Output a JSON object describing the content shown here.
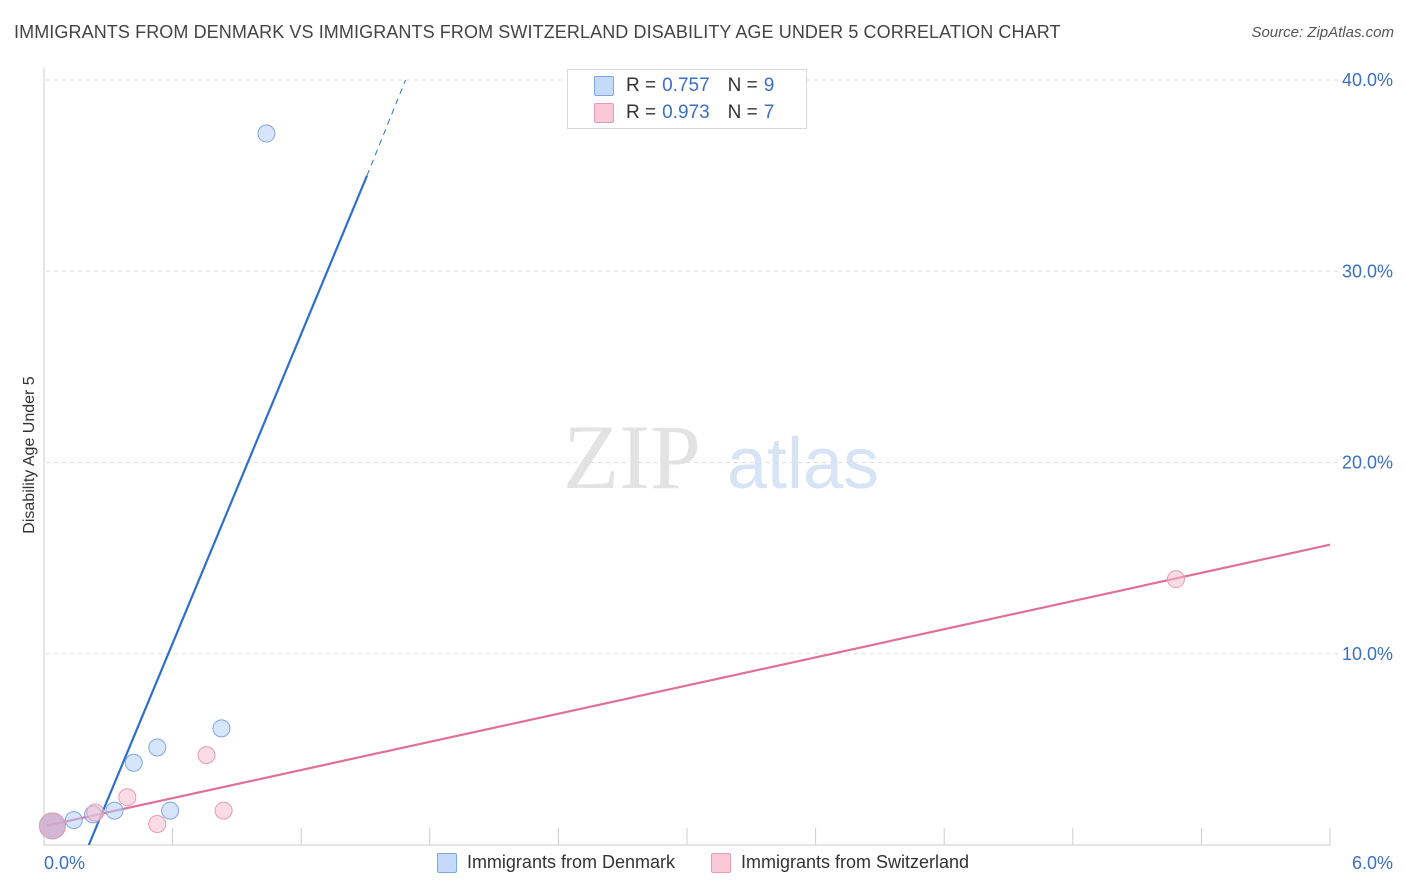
{
  "title": "IMMIGRANTS FROM DENMARK VS IMMIGRANTS FROM SWITZERLAND DISABILITY AGE UNDER 5 CORRELATION CHART",
  "source": "Source: ZipAtlas.com",
  "watermark": {
    "zip": "ZIP",
    "atlas": "atlas"
  },
  "legend_top": [
    {
      "r_label": "R =",
      "r_value": "0.757",
      "n_label": "N =",
      "n_value": "9"
    },
    {
      "r_label": "R =",
      "r_value": "0.973",
      "n_label": "N =",
      "n_value": "7"
    }
  ],
  "chart_data": {
    "type": "scatter",
    "title": "IMMIGRANTS FROM DENMARK VS IMMIGRANTS FROM SWITZERLAND DISABILITY AGE UNDER 5 CORRELATION CHART",
    "xlabel": "",
    "ylabel": "Disability Age Under 5",
    "xlim": [
      0,
      6
    ],
    "ylim": [
      0,
      40
    ],
    "x_tick_labels": [
      "0.0%",
      "6.0%"
    ],
    "y_tick_labels": [
      "10.0%",
      "20.0%",
      "30.0%",
      "40.0%"
    ],
    "y_ticks": [
      10,
      20,
      30,
      40
    ],
    "grid": true,
    "legend": "bottom",
    "colors": {
      "blue": "#6f9ee0",
      "blue_line": "#2d6fcc",
      "pink": "#eb8fae",
      "pink_line": "#e0709a"
    },
    "series": [
      {
        "name": "Immigrants from Denmark",
        "color": "blue",
        "points": [
          {
            "x": 0.03,
            "y": 1.0
          },
          {
            "x": 0.13,
            "y": 1.3
          },
          {
            "x": 0.22,
            "y": 1.6
          },
          {
            "x": 0.32,
            "y": 1.8
          },
          {
            "x": 0.41,
            "y": 4.3
          },
          {
            "x": 0.52,
            "y": 5.1
          },
          {
            "x": 0.58,
            "y": 1.8
          },
          {
            "x": 0.82,
            "y": 6.1
          },
          {
            "x": 1.03,
            "y": 37.2
          }
        ],
        "trend": {
          "x0": 0.2,
          "y0": 0.0,
          "x1": 1.5,
          "y1": 35.0,
          "dash_x1": 1.68,
          "dash_y1": 40.0
        }
      },
      {
        "name": "Immigrants from Switzerland",
        "color": "pink",
        "points": [
          {
            "x": 0.03,
            "y": 1.0
          },
          {
            "x": 0.23,
            "y": 1.7
          },
          {
            "x": 0.38,
            "y": 2.5
          },
          {
            "x": 0.52,
            "y": 1.1
          },
          {
            "x": 0.75,
            "y": 4.7
          },
          {
            "x": 0.83,
            "y": 1.8
          },
          {
            "x": 5.28,
            "y": 13.9
          }
        ],
        "trend": {
          "x0": 0.0,
          "y0": 1.0,
          "x1": 6.0,
          "y1": 15.7
        }
      }
    ]
  }
}
